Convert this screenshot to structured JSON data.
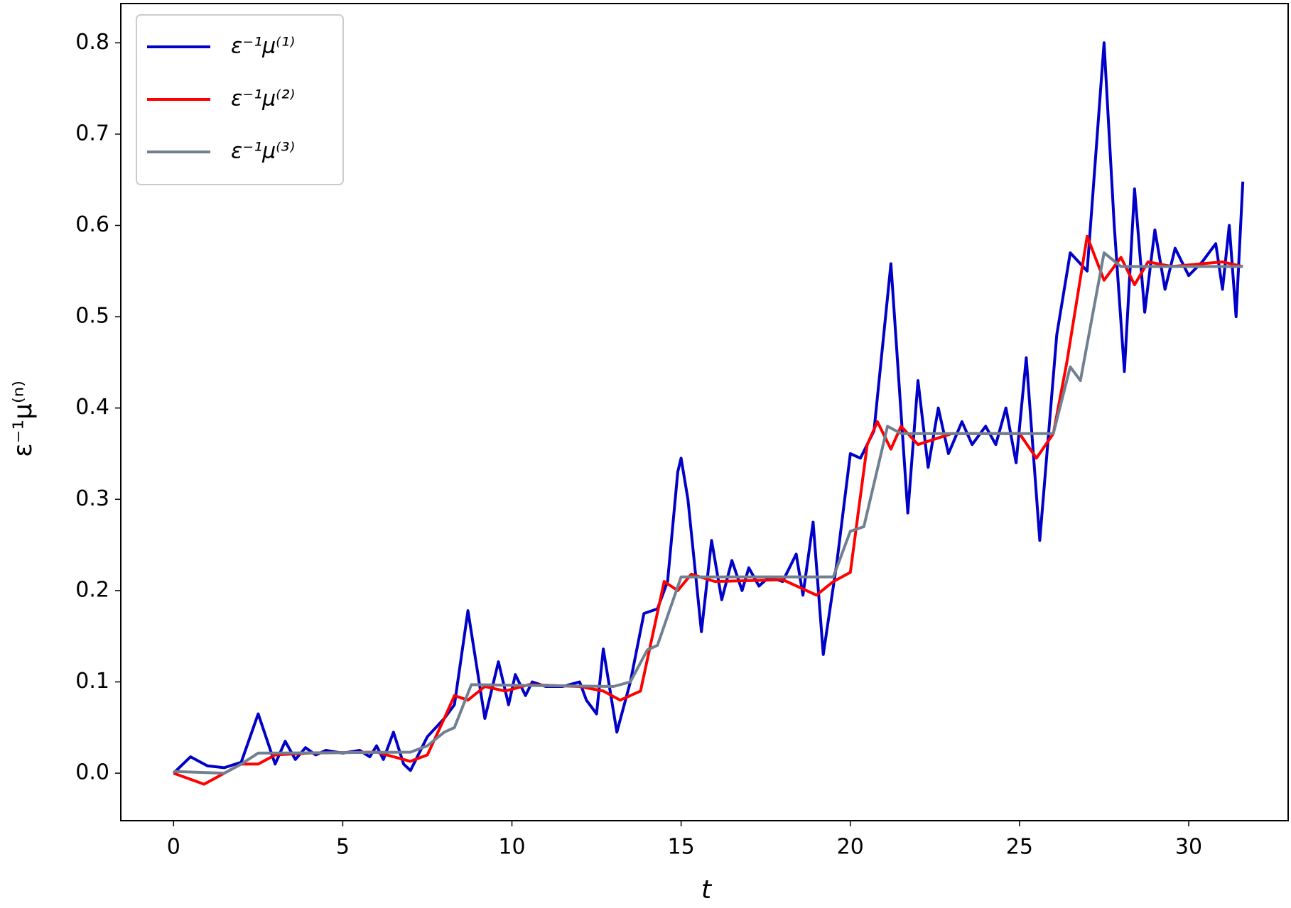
{
  "chart_data": {
    "type": "line",
    "xlabel": "t",
    "ylabel": "ε⁻¹μ⁽ⁿ⁾",
    "xlim": [
      -1.56,
      32.94
    ],
    "ylim": [
      -0.052,
      0.843
    ],
    "xticks": [
      0,
      5,
      10,
      15,
      20,
      25,
      30
    ],
    "yticks": [
      {
        "value": 0,
        "label": "0.0"
      },
      0.1,
      0.2,
      0.3,
      0.4,
      0.5,
      0.6,
      0.7,
      0.8
    ],
    "legend": "upper left",
    "series": [
      {
        "name": "ε⁻¹μ⁽¹⁾",
        "color": "#0000c8",
        "x": [
          0,
          0.5,
          1,
          1.5,
          2,
          2.5,
          3,
          3.3,
          3.6,
          3.9,
          4.2,
          4.5,
          5,
          5.5,
          5.8,
          6,
          6.2,
          6.5,
          6.8,
          7,
          7.5,
          8,
          8.3,
          8.7,
          9.2,
          9.6,
          9.9,
          10.1,
          10.4,
          10.6,
          11,
          11.5,
          12,
          12.2,
          12.5,
          12.7,
          13.1,
          13.5,
          13.9,
          14.3,
          14.6,
          14.9,
          15,
          15.2,
          15.6,
          15.9,
          16.2,
          16.5,
          16.8,
          17,
          17.3,
          17.6,
          18,
          18.4,
          18.6,
          18.9,
          19.2,
          19.6,
          20,
          20.3,
          20.7,
          21.2,
          21.7,
          22,
          22.3,
          22.6,
          22.9,
          23.3,
          23.6,
          24,
          24.3,
          24.6,
          24.9,
          25.2,
          25.6,
          26.1,
          26.5,
          27,
          27.5,
          27.8,
          28.1,
          28.4,
          28.7,
          29,
          29.3,
          29.6,
          30,
          30.4,
          30.8,
          31,
          31.2,
          31.4,
          31.6
        ],
        "values": [
          0,
          0.018,
          0.008,
          0.006,
          0.012,
          0.065,
          0.01,
          0.035,
          0.015,
          0.028,
          0.02,
          0.025,
          0.022,
          0.025,
          0.018,
          0.03,
          0.015,
          0.045,
          0.01,
          0.003,
          0.04,
          0.06,
          0.075,
          0.178,
          0.06,
          0.122,
          0.075,
          0.108,
          0.085,
          0.1,
          0.095,
          0.095,
          0.1,
          0.08,
          0.065,
          0.136,
          0.045,
          0.1,
          0.175,
          0.18,
          0.21,
          0.33,
          0.345,
          0.3,
          0.155,
          0.255,
          0.19,
          0.233,
          0.2,
          0.225,
          0.205,
          0.215,
          0.21,
          0.24,
          0.195,
          0.275,
          0.13,
          0.23,
          0.35,
          0.345,
          0.375,
          0.558,
          0.285,
          0.43,
          0.335,
          0.4,
          0.35,
          0.385,
          0.36,
          0.38,
          0.36,
          0.4,
          0.34,
          0.455,
          0.255,
          0.48,
          0.57,
          0.55,
          0.8,
          0.6,
          0.44,
          0.64,
          0.505,
          0.595,
          0.53,
          0.575,
          0.545,
          0.56,
          0.58,
          0.53,
          0.6,
          0.5,
          0.648
        ]
      },
      {
        "name": "ε⁻¹μ⁽²⁾",
        "color": "#ff0000",
        "x": [
          0,
          0.9,
          1.5,
          2,
          2.5,
          3,
          4,
          6,
          7,
          7.5,
          8,
          8.3,
          8.7,
          9.2,
          9.8,
          10.5,
          12,
          12.7,
          13.2,
          13.8,
          14.5,
          14.9,
          15.3,
          16,
          18,
          19,
          19.5,
          20,
          20.5,
          20.8,
          21.2,
          21.5,
          22,
          23,
          24,
          25,
          25.5,
          26,
          26.4,
          27,
          27.5,
          28,
          28.4,
          28.8,
          29.5,
          31,
          31.6
        ],
        "values": [
          0,
          -0.012,
          0,
          0.01,
          0.01,
          0.02,
          0.022,
          0.023,
          0.013,
          0.02,
          0.06,
          0.085,
          0.08,
          0.095,
          0.09,
          0.097,
          0.095,
          0.09,
          0.08,
          0.09,
          0.21,
          0.2,
          0.218,
          0.21,
          0.212,
          0.195,
          0.21,
          0.22,
          0.36,
          0.385,
          0.355,
          0.38,
          0.36,
          0.372,
          0.372,
          0.372,
          0.345,
          0.372,
          0.45,
          0.588,
          0.54,
          0.565,
          0.535,
          0.56,
          0.555,
          0.56,
          0.555
        ]
      },
      {
        "name": "ε⁻¹μ⁽³⁾",
        "color": "#708090",
        "x": [
          0,
          1.5,
          2,
          2.5,
          3,
          7,
          7.5,
          8,
          8.3,
          8.8,
          13,
          13.5,
          14,
          14.3,
          15,
          16,
          19.5,
          20,
          20.4,
          21.1,
          21.5,
          26,
          26.5,
          26.8,
          27.5,
          28,
          31.6
        ],
        "values": [
          0.002,
          0,
          0.01,
          0.022,
          0.022,
          0.023,
          0.03,
          0.045,
          0.05,
          0.097,
          0.095,
          0.1,
          0.135,
          0.14,
          0.215,
          0.215,
          0.215,
          0.265,
          0.27,
          0.38,
          0.372,
          0.372,
          0.445,
          0.43,
          0.57,
          0.555,
          0.555
        ]
      }
    ]
  }
}
